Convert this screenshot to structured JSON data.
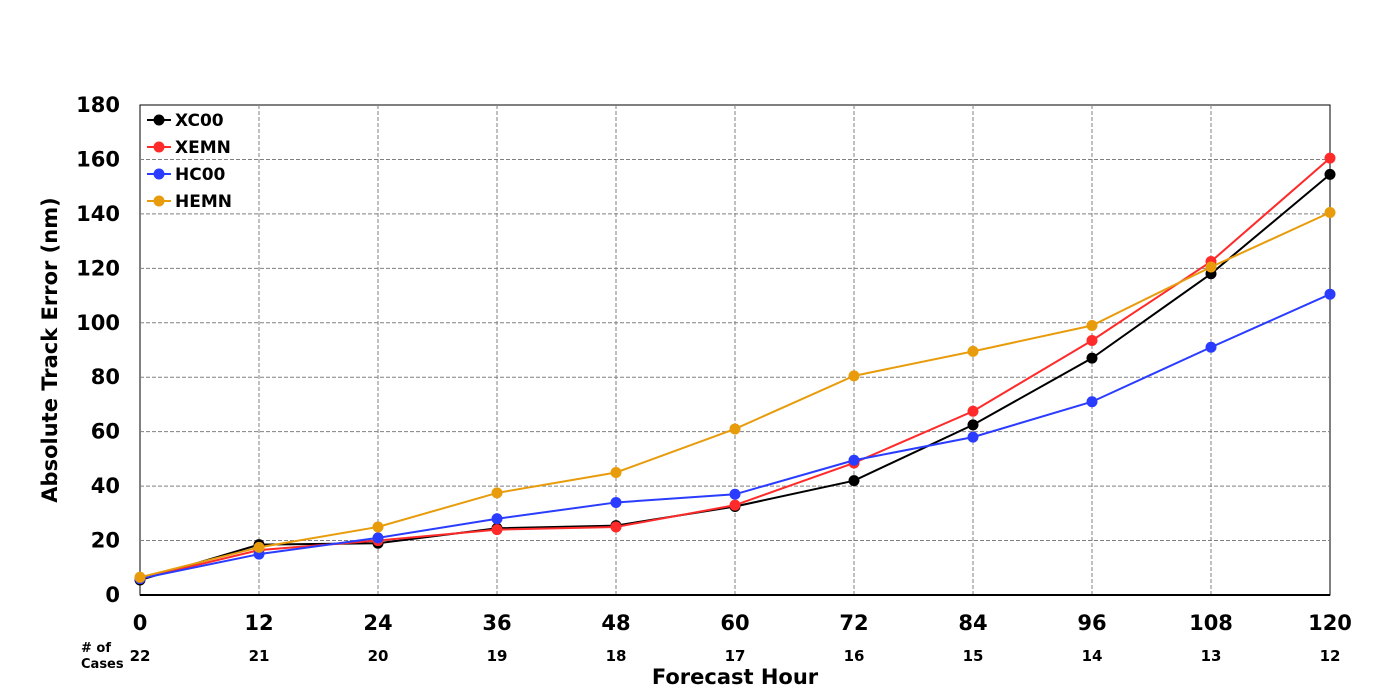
{
  "chart_data": {
    "type": "line",
    "title": "",
    "xlabel": "Forecast Hour",
    "ylabel": "Absolute Track Error (nm)",
    "x": [
      0,
      12,
      24,
      36,
      48,
      60,
      72,
      84,
      96,
      108,
      120
    ],
    "xlim": [
      0,
      120
    ],
    "ylim": [
      0,
      180
    ],
    "yticks": [
      0,
      20,
      40,
      60,
      80,
      100,
      120,
      140,
      160,
      180
    ],
    "grid": true,
    "legend_position": "top-left",
    "cases_label_line1": "# of",
    "cases_label_line2": "Cases",
    "cases": [
      22,
      21,
      20,
      19,
      18,
      17,
      16,
      15,
      14,
      13,
      12
    ],
    "series": [
      {
        "name": "XC00",
        "color": "#000000",
        "values": [
          5.5,
          18.5,
          19,
          24.5,
          25.5,
          32.5,
          42,
          62.5,
          87,
          118,
          154.5
        ]
      },
      {
        "name": "XEMN",
        "color": "#ff2a2a",
        "values": [
          6,
          16.5,
          20,
          24,
          25,
          33,
          48.5,
          67.5,
          93.5,
          122.5,
          160.5
        ]
      },
      {
        "name": "HC00",
        "color": "#2a3cff",
        "values": [
          6,
          15,
          21,
          28,
          34,
          37,
          49.5,
          58,
          71,
          91,
          110.5
        ]
      },
      {
        "name": "HEMN",
        "color": "#e89c0c",
        "values": [
          6.5,
          17.5,
          25,
          37.5,
          45,
          61,
          80.5,
          89.5,
          99,
          120.5,
          140.5
        ]
      }
    ]
  }
}
